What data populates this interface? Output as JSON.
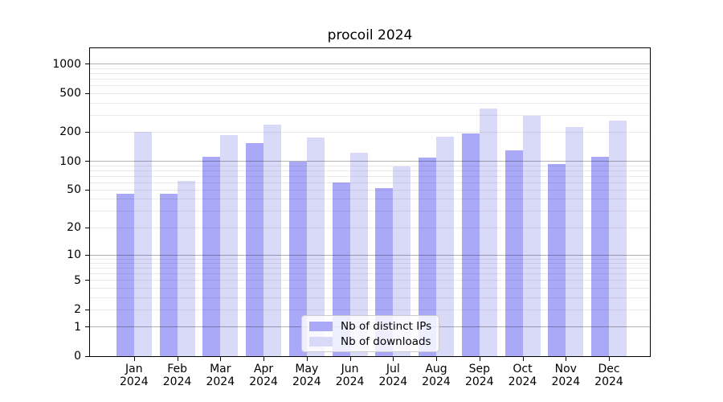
{
  "chart_data": {
    "type": "bar",
    "title": "procoil 2024",
    "categories": [
      "Jan 2024",
      "Feb 2024",
      "Mar 2024",
      "Apr 2024",
      "May 2024",
      "Jun 2024",
      "Jul 2024",
      "Aug 2024",
      "Sep 2024",
      "Oct 2024",
      "Nov 2024",
      "Dec 2024"
    ],
    "series": [
      {
        "name": "Nb of distinct IPs",
        "color": "#a9a9f8",
        "values": [
          46,
          46,
          112,
          155,
          100,
          60,
          52,
          110,
          195,
          130,
          94,
          112
        ]
      },
      {
        "name": "Nb of downloads",
        "color": "#d9d9f8",
        "values": [
          200,
          62,
          185,
          240,
          177,
          123,
          89,
          180,
          350,
          295,
          225,
          263
        ]
      }
    ],
    "yscale": "log1p",
    "ylim": [
      0,
      1462
    ],
    "yticks": [
      0,
      1,
      2,
      5,
      10,
      20,
      50,
      100,
      200,
      500,
      1000
    ],
    "grid_major": [
      1,
      10,
      100,
      1000
    ],
    "grid_minor": [
      2,
      3,
      4,
      5,
      6,
      7,
      8,
      9,
      20,
      30,
      40,
      50,
      60,
      70,
      80,
      90,
      200,
      300,
      400,
      500,
      600,
      700,
      800,
      900
    ],
    "legend_position": "lower center",
    "xlabel": "",
    "ylabel": ""
  },
  "colors": {
    "background": "#ffffff",
    "axis": "#000000",
    "bar_ips": "#a9a9f8",
    "bar_downloads": "#d9d9f8"
  }
}
